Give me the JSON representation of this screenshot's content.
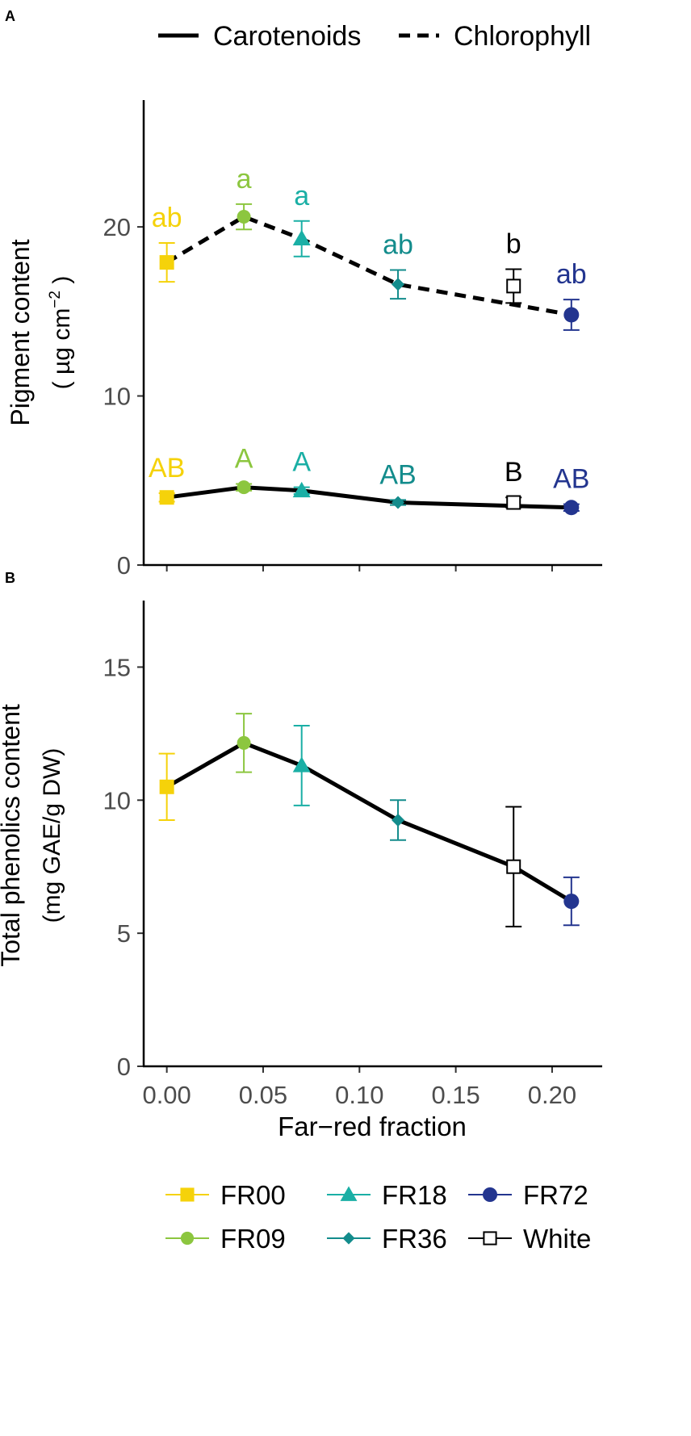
{
  "panel_labels": {
    "a": "A",
    "b": "B"
  },
  "style": {
    "line_color": "#000000",
    "axis_color": "#000000",
    "tick_label_color": "#4d4d4d",
    "background": "#ffffff"
  },
  "treatment_colors": {
    "FR00": "#F5D20A",
    "FR09": "#8CC63F",
    "FR18": "#1AAFA5",
    "FR36": "#138C8C",
    "FR72": "#23358F",
    "White": "#000000"
  },
  "treatment_markers": {
    "FR00": "square",
    "FR09": "circle",
    "FR18": "triangle",
    "FR36": "diamond",
    "FR72": "circle-large",
    "White": "square-open"
  },
  "legend_treatments": [
    "FR00",
    "FR18",
    "FR72",
    "FR09",
    "FR36",
    "White"
  ],
  "chart_data": [
    {
      "type": "line",
      "panel": "A",
      "title": "",
      "xlabel": "",
      "ylabel": "Pigment content",
      "ylabel_units_prefix": "( µg cm",
      "ylabel_units_exp": "−2",
      "ylabel_units_suffix": " )",
      "xlim": [
        -0.012,
        0.226
      ],
      "ylim": [
        0,
        27.5
      ],
      "xticks": [
        0.0,
        0.05,
        0.1,
        0.15,
        0.2
      ],
      "yticks": [
        0,
        10,
        20
      ],
      "ytick_labels": [
        "0",
        "10",
        "20"
      ],
      "line_legend": [
        {
          "name": "Carotenoids",
          "dash": "solid"
        },
        {
          "name": "Chlorophyll",
          "dash": "dashed"
        }
      ],
      "series": [
        {
          "name": "Chlorophyll",
          "dash": "dashed",
          "points": [
            {
              "treatment": "FR00",
              "x": 0.0,
              "y": 17.9,
              "err": 1.15,
              "label": "ab"
            },
            {
              "treatment": "FR09",
              "x": 0.04,
              "y": 20.6,
              "err": 0.75,
              "label": "a"
            },
            {
              "treatment": "FR18",
              "x": 0.07,
              "y": 19.3,
              "err": 1.05,
              "label": "a"
            },
            {
              "treatment": "FR36",
              "x": 0.12,
              "y": 16.6,
              "err": 0.85,
              "label": "ab"
            },
            {
              "treatment": "White",
              "x": 0.18,
              "y": 16.5,
              "err": 1.0,
              "label": "b"
            },
            {
              "treatment": "FR72",
              "x": 0.21,
              "y": 14.8,
              "err": 0.9,
              "label": "ab"
            }
          ],
          "line_points": [
            {
              "x": 0.0,
              "y": 17.9
            },
            {
              "x": 0.04,
              "y": 20.6
            },
            {
              "x": 0.07,
              "y": 19.3
            },
            {
              "x": 0.12,
              "y": 16.6
            },
            {
              "x": 0.18,
              "y": 15.4
            },
            {
              "x": 0.21,
              "y": 14.8
            }
          ]
        },
        {
          "name": "Carotenoids",
          "dash": "solid",
          "points": [
            {
              "treatment": "FR00",
              "x": 0.0,
              "y": 4.0,
              "err": 0.25,
              "label": "AB"
            },
            {
              "treatment": "FR09",
              "x": 0.04,
              "y": 4.6,
              "err": 0.2,
              "label": "A"
            },
            {
              "treatment": "FR18",
              "x": 0.07,
              "y": 4.4,
              "err": 0.2,
              "label": "A"
            },
            {
              "treatment": "FR36",
              "x": 0.12,
              "y": 3.7,
              "err": 0.15,
              "label": "AB"
            },
            {
              "treatment": "White",
              "x": 0.18,
              "y": 3.7,
              "err": 0.3,
              "label": "B"
            },
            {
              "treatment": "FR72",
              "x": 0.21,
              "y": 3.4,
              "err": 0.2,
              "label": "AB"
            }
          ],
          "line_points": [
            {
              "x": 0.0,
              "y": 4.0
            },
            {
              "x": 0.04,
              "y": 4.6
            },
            {
              "x": 0.07,
              "y": 4.4
            },
            {
              "x": 0.12,
              "y": 3.7
            },
            {
              "x": 0.18,
              "y": 3.5
            },
            {
              "x": 0.21,
              "y": 3.4
            }
          ]
        }
      ]
    },
    {
      "type": "line",
      "panel": "B",
      "title": "",
      "xlabel": "Far−red fraction",
      "ylabel": "Total phenolics content",
      "ylabel_units": "(mg GAE/g DW)",
      "xlim": [
        -0.012,
        0.226
      ],
      "ylim": [
        0,
        17.5
      ],
      "xticks": [
        0.0,
        0.05,
        0.1,
        0.15,
        0.2
      ],
      "xtick_labels": [
        "0.00",
        "0.05",
        "0.10",
        "0.15",
        "0.20"
      ],
      "yticks": [
        0,
        5,
        10,
        15
      ],
      "ytick_labels": [
        "0",
        "5",
        "10",
        "15"
      ],
      "series": [
        {
          "name": "Total phenolics",
          "dash": "solid",
          "points": [
            {
              "treatment": "FR00",
              "x": 0.0,
              "y": 10.5,
              "err": 1.25
            },
            {
              "treatment": "FR09",
              "x": 0.04,
              "y": 12.15,
              "err": 1.1
            },
            {
              "treatment": "FR18",
              "x": 0.07,
              "y": 11.3,
              "err": 1.5
            },
            {
              "treatment": "FR36",
              "x": 0.12,
              "y": 9.25,
              "err": 0.75
            },
            {
              "treatment": "White",
              "x": 0.18,
              "y": 7.5,
              "err": 2.25
            },
            {
              "treatment": "FR72",
              "x": 0.21,
              "y": 6.2,
              "err": 0.9
            }
          ],
          "line_points": [
            {
              "x": 0.0,
              "y": 10.5
            },
            {
              "x": 0.04,
              "y": 12.15
            },
            {
              "x": 0.07,
              "y": 11.3
            },
            {
              "x": 0.12,
              "y": 9.25
            },
            {
              "x": 0.18,
              "y": 7.5
            },
            {
              "x": 0.21,
              "y": 6.2
            }
          ]
        }
      ]
    }
  ]
}
